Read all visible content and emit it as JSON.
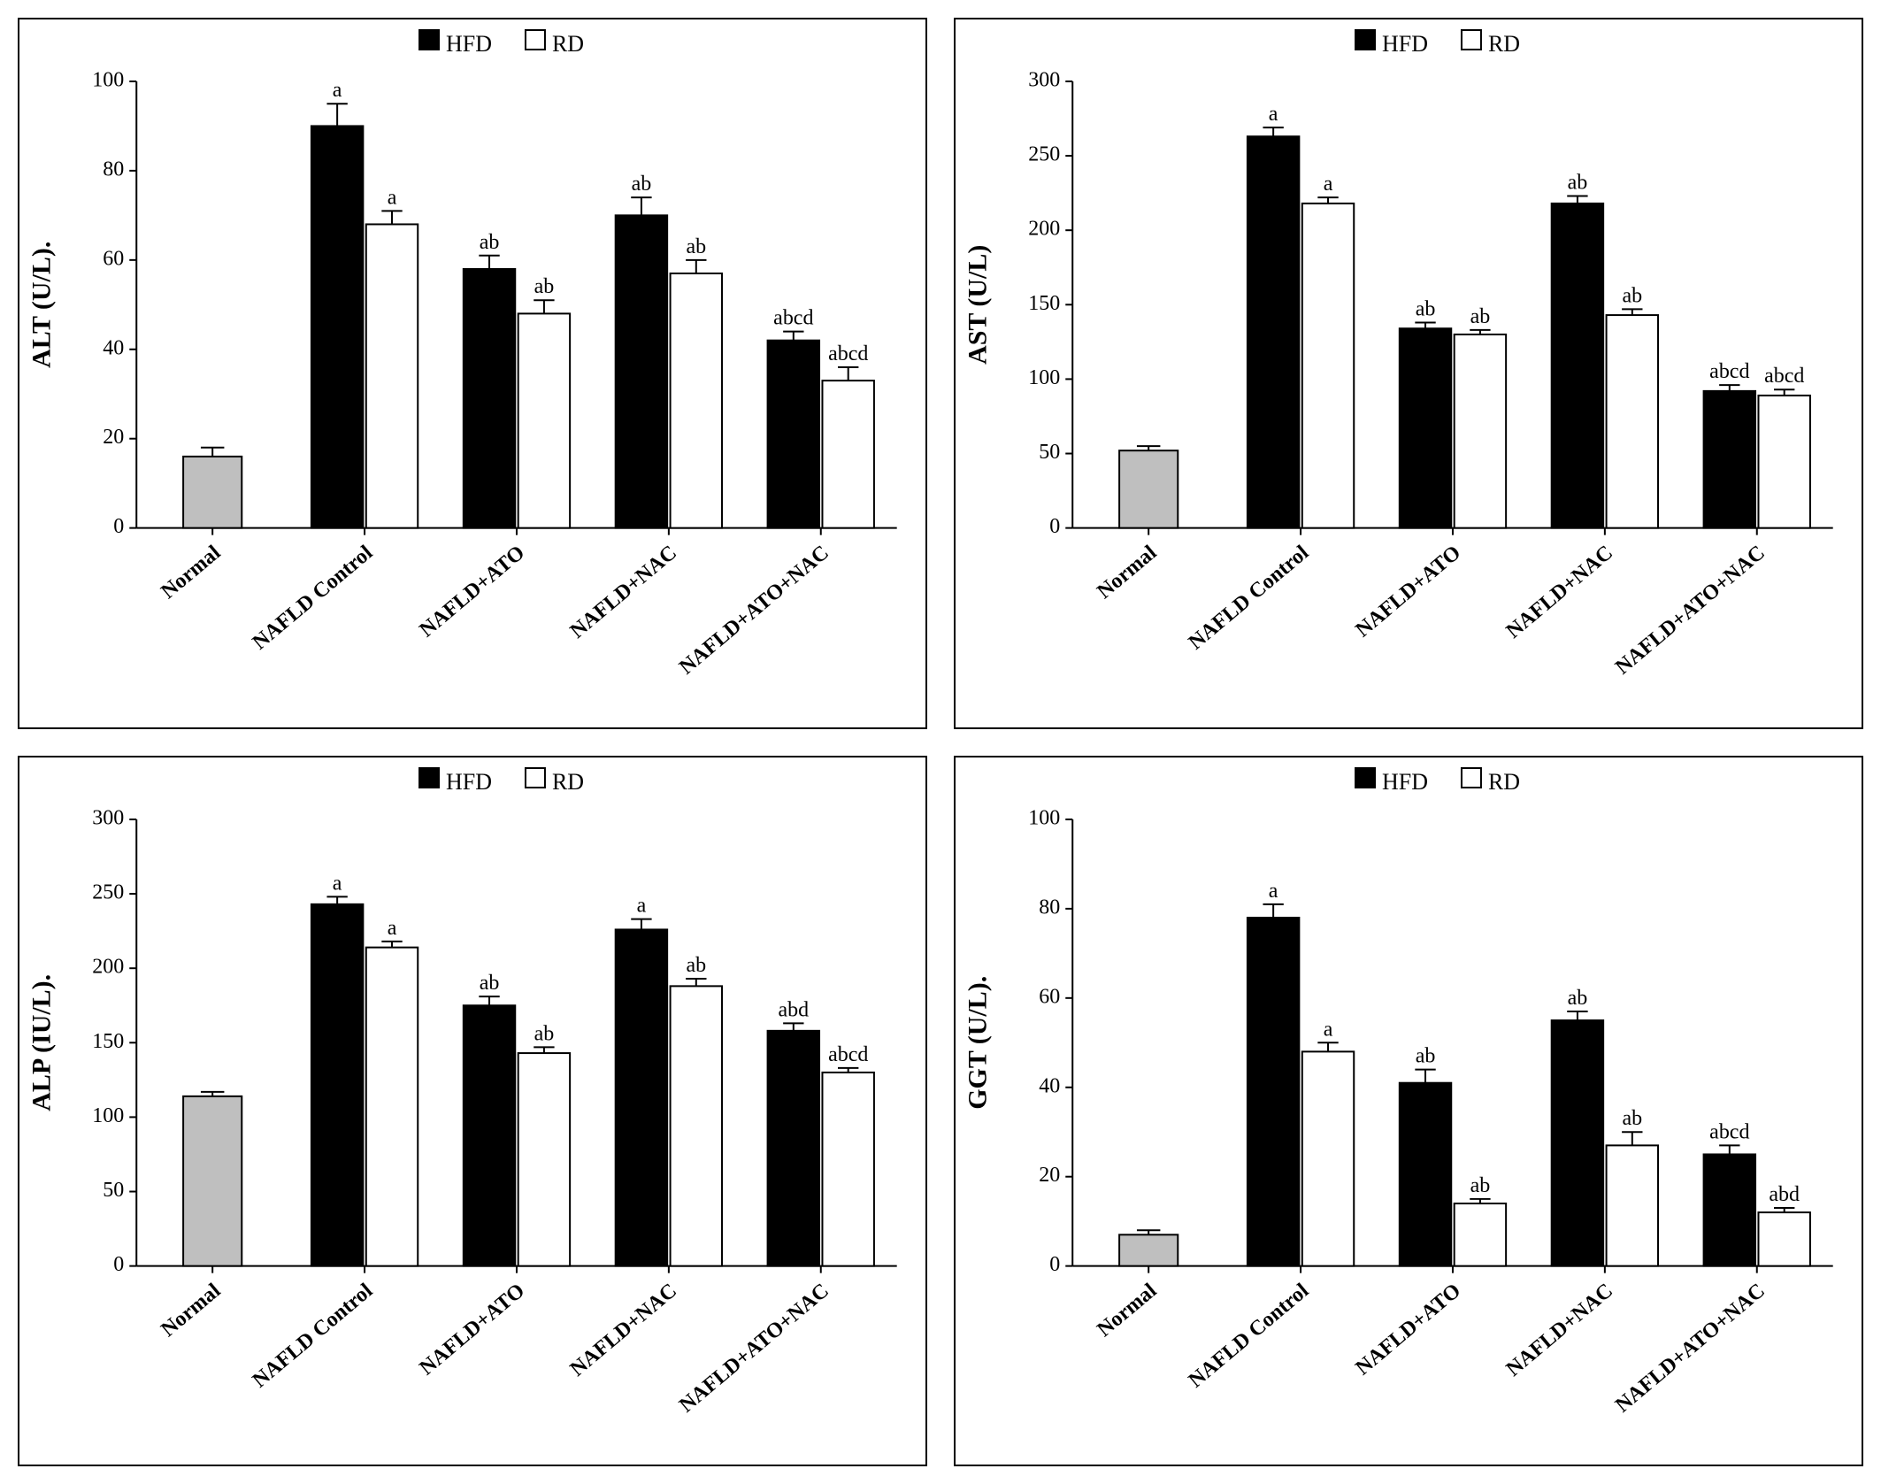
{
  "legend": {
    "hfd": "HFD",
    "rd": "RD"
  },
  "categories": [
    "Normal",
    "NAFLD Control",
    "NAFLD+ATO",
    "NAFLD+NAC",
    "NAFLD+ATO+NAC"
  ],
  "colors": {
    "normal_fill": "#bfbfbf",
    "hfd_fill": "#000000",
    "rd_fill": "#ffffff",
    "bar_stroke": "#000000",
    "axis": "#000000",
    "text": "#000000",
    "background": "#ffffff"
  },
  "fonts": {
    "axis_label_size": 30,
    "tick_size": 24,
    "legend_size": 26,
    "annotation_size": 24,
    "weight_axis": "bold"
  },
  "layout": {
    "bar_group_width": 0.7,
    "bar_gap_in_pair": 0.02,
    "error_cap_ratio": 0.4,
    "category_label_rotation": -40
  },
  "panels": [
    {
      "id": "alt",
      "ylabel": "ALT (U/L).",
      "ylim": [
        0,
        100
      ],
      "ytick_step": 20,
      "yticks": [
        0,
        20,
        40,
        60,
        80,
        100
      ],
      "normal": {
        "value": 16,
        "err": 2,
        "label": ""
      },
      "pairs": [
        {
          "hfd": 90,
          "hfd_err": 5,
          "hfd_label": "a",
          "rd": 68,
          "rd_err": 3,
          "rd_label": "a"
        },
        {
          "hfd": 58,
          "hfd_err": 3,
          "hfd_label": "ab",
          "rd": 48,
          "rd_err": 3,
          "rd_label": "ab"
        },
        {
          "hfd": 70,
          "hfd_err": 4,
          "hfd_label": "ab",
          "rd": 57,
          "rd_err": 3,
          "rd_label": "ab"
        },
        {
          "hfd": 42,
          "hfd_err": 2,
          "hfd_label": "abcd",
          "rd": 33,
          "rd_err": 3,
          "rd_label": "abcd"
        }
      ]
    },
    {
      "id": "ast",
      "ylabel": "AST (U/L)",
      "ylim": [
        0,
        300
      ],
      "ytick_step": 50,
      "yticks": [
        0,
        50,
        100,
        150,
        200,
        250,
        300
      ],
      "normal": {
        "value": 52,
        "err": 3,
        "label": ""
      },
      "pairs": [
        {
          "hfd": 263,
          "hfd_err": 6,
          "hfd_label": "a",
          "rd": 218,
          "rd_err": 4,
          "rd_label": "a"
        },
        {
          "hfd": 134,
          "hfd_err": 4,
          "hfd_label": "ab",
          "rd": 130,
          "rd_err": 3,
          "rd_label": "ab"
        },
        {
          "hfd": 218,
          "hfd_err": 5,
          "hfd_label": "ab",
          "rd": 143,
          "rd_err": 4,
          "rd_label": "ab"
        },
        {
          "hfd": 92,
          "hfd_err": 4,
          "hfd_label": "abcd",
          "rd": 89,
          "rd_err": 4,
          "rd_label": "abcd"
        }
      ]
    },
    {
      "id": "alp",
      "ylabel": "ALP (IU/L).",
      "ylim": [
        0,
        300
      ],
      "ytick_step": 50,
      "yticks": [
        0,
        50,
        100,
        150,
        200,
        250,
        300
      ],
      "normal": {
        "value": 114,
        "err": 3,
        "label": ""
      },
      "pairs": [
        {
          "hfd": 243,
          "hfd_err": 5,
          "hfd_label": "a",
          "rd": 214,
          "rd_err": 4,
          "rd_label": "a"
        },
        {
          "hfd": 175,
          "hfd_err": 6,
          "hfd_label": "ab",
          "rd": 143,
          "rd_err": 4,
          "rd_label": "ab"
        },
        {
          "hfd": 226,
          "hfd_err": 7,
          "hfd_label": "a",
          "rd": 188,
          "rd_err": 5,
          "rd_label": "ab"
        },
        {
          "hfd": 158,
          "hfd_err": 5,
          "hfd_label": "abd",
          "rd": 130,
          "rd_err": 3,
          "rd_label": "abcd"
        }
      ]
    },
    {
      "id": "ggt",
      "ylabel": "GGT (U/L).",
      "ylim": [
        0,
        100
      ],
      "ytick_step": 20,
      "yticks": [
        0,
        20,
        40,
        60,
        80,
        100
      ],
      "normal": {
        "value": 7,
        "err": 1,
        "label": ""
      },
      "pairs": [
        {
          "hfd": 78,
          "hfd_err": 3,
          "hfd_label": "a",
          "rd": 48,
          "rd_err": 2,
          "rd_label": "a"
        },
        {
          "hfd": 41,
          "hfd_err": 3,
          "hfd_label": "ab",
          "rd": 14,
          "rd_err": 1,
          "rd_label": "ab"
        },
        {
          "hfd": 55,
          "hfd_err": 2,
          "hfd_label": "ab",
          "rd": 27,
          "rd_err": 3,
          "rd_label": "ab"
        },
        {
          "hfd": 25,
          "hfd_err": 2,
          "hfd_label": "abcd",
          "rd": 12,
          "rd_err": 1,
          "rd_label": "abd"
        }
      ]
    }
  ]
}
